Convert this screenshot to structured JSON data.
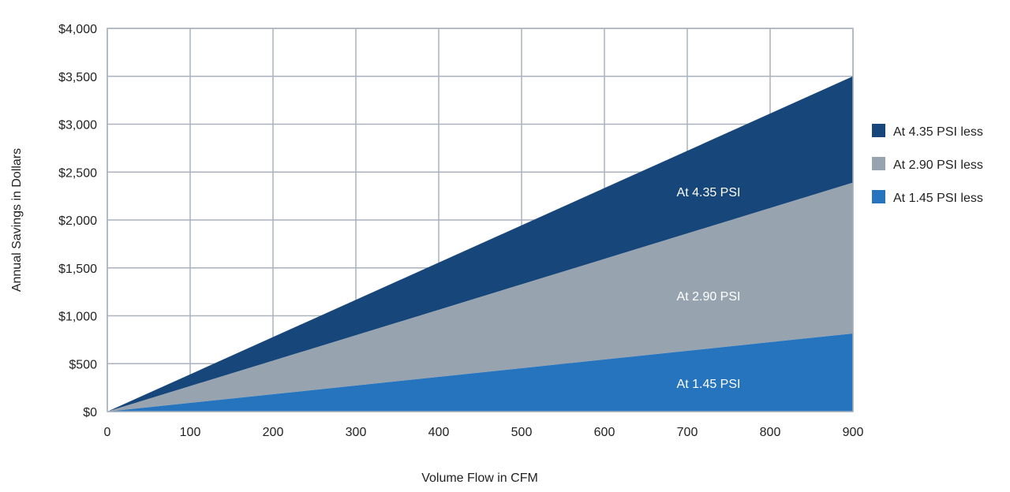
{
  "chart_data": {
    "type": "area",
    "xlabel": "Volume Flow in CFM",
    "ylabel": "Annual Savings in Dollars",
    "xlim": [
      0,
      900
    ],
    "ylim": [
      0,
      4000
    ],
    "x_ticks": [
      "0",
      "100",
      "200",
      "300",
      "400",
      "500",
      "600",
      "700",
      "800",
      "900"
    ],
    "y_ticks": [
      "$0",
      "$500",
      "$1,000",
      "$1,500",
      "$2,000",
      "$2,500",
      "$3,000",
      "$3,500",
      "$4,000"
    ],
    "grid": true,
    "legend_position": "right",
    "x": [
      0,
      900
    ],
    "series": [
      {
        "name": "At 4.35 PSI less",
        "values": [
          0,
          3500
        ],
        "color": "#17467a",
        "label": "At 4.35 PSI"
      },
      {
        "name": "At 2.90 PSI less",
        "values": [
          0,
          2390
        ],
        "color": "#97a4b0",
        "label": "At 2.90 PSI"
      },
      {
        "name": "At 1.45 PSI less",
        "values": [
          0,
          815
        ],
        "color": "#2574bd",
        "label": "At 1.45 PSI"
      }
    ]
  }
}
